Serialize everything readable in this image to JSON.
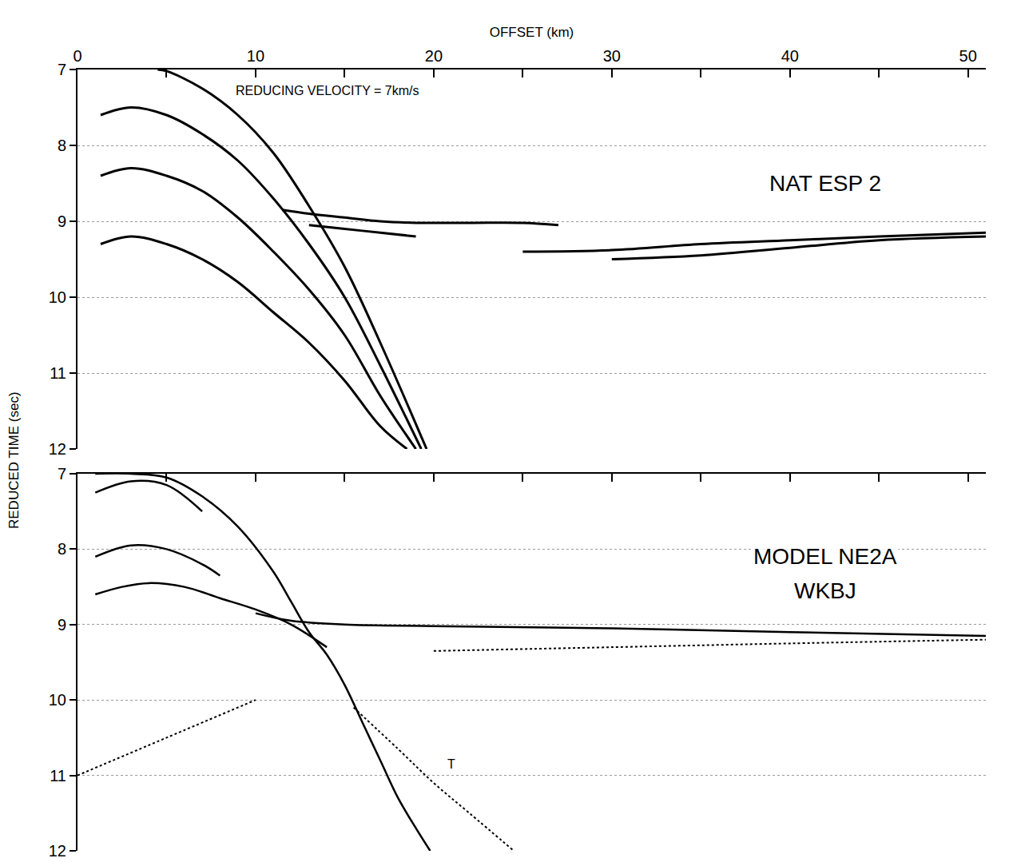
{
  "chart_data": [
    {
      "type": "line",
      "xlabel": "OFFSET (km)",
      "ylabel": "REDUCED TIME (sec)",
      "xlim": [
        0,
        51
      ],
      "xticks": [
        0,
        10,
        20,
        30,
        40,
        50
      ],
      "ylim": [
        12,
        7
      ],
      "yticks": [
        7,
        8,
        9,
        10,
        11,
        12
      ],
      "grid": true,
      "annotations": [
        {
          "text": "REDUCING VELOCITY = 7km/s",
          "x": 8.8,
          "y": 7.28
        },
        {
          "text": "NAT ESP 2",
          "x": 42,
          "y": 8.5
        }
      ],
      "series": [
        {
          "color": "#000000",
          "line_style": "solid",
          "x": [
            4.5,
            5,
            7,
            9,
            11,
            13,
            15,
            17,
            19.6
          ],
          "values": [
            7.0,
            7.02,
            7.25,
            7.6,
            8.1,
            8.8,
            9.6,
            10.6,
            12.0
          ]
        },
        {
          "color": "#000000",
          "line_style": "solid",
          "x": [
            1.3,
            3,
            5,
            7,
            9,
            11,
            13,
            15,
            17,
            19.3
          ],
          "values": [
            7.6,
            7.5,
            7.6,
            7.85,
            8.2,
            8.7,
            9.3,
            10.0,
            10.9,
            12.0
          ]
        },
        {
          "color": "#000000",
          "line_style": "solid",
          "x": [
            1.3,
            3,
            5,
            7,
            9,
            11,
            13,
            15,
            17,
            19.0
          ],
          "values": [
            8.4,
            8.3,
            8.4,
            8.6,
            8.95,
            9.4,
            9.9,
            10.5,
            11.3,
            12.0
          ]
        },
        {
          "color": "#000000",
          "line_style": "solid",
          "x": [
            1.3,
            3,
            5,
            7,
            9,
            11,
            13,
            15,
            17,
            18.5
          ],
          "values": [
            9.3,
            9.2,
            9.3,
            9.5,
            9.8,
            10.2,
            10.6,
            11.1,
            11.7,
            12.0
          ]
        },
        {
          "color": "#000000",
          "line_style": "solid",
          "x": [
            11.5,
            13,
            15,
            17,
            19,
            22,
            25,
            27
          ],
          "values": [
            8.85,
            8.9,
            8.95,
            9.0,
            9.02,
            9.02,
            9.02,
            9.05
          ]
        },
        {
          "color": "#000000",
          "line_style": "solid",
          "x": [
            13,
            15,
            17,
            19
          ],
          "values": [
            9.05,
            9.1,
            9.15,
            9.2
          ]
        },
        {
          "color": "#000000",
          "line_style": "solid",
          "x": [
            25,
            30,
            35,
            40,
            45,
            51
          ],
          "values": [
            9.4,
            9.38,
            9.3,
            9.25,
            9.2,
            9.15
          ]
        },
        {
          "color": "#000000",
          "line_style": "solid",
          "x": [
            30,
            35,
            40,
            45,
            51
          ],
          "values": [
            9.5,
            9.45,
            9.35,
            9.25,
            9.2
          ]
        }
      ]
    },
    {
      "type": "line",
      "xlim": [
        0,
        51
      ],
      "xticks": [
        0,
        10,
        20,
        30,
        40,
        50
      ],
      "ylim": [
        12,
        7
      ],
      "yticks": [
        7,
        8,
        9,
        10,
        11,
        12
      ],
      "grid": true,
      "tick_labels": "y",
      "annotations": [
        {
          "text": "MODEL NE2A",
          "x": 42,
          "y": 8.1
        },
        {
          "text": "WKBJ",
          "x": 42,
          "y": 8.55
        },
        {
          "text": "T",
          "x": 20.7,
          "y": 10.85
        }
      ],
      "series": [
        {
          "color": "#000000",
          "line_style": "solid",
          "x": [
            1,
            3,
            5,
            7,
            9,
            11,
            12,
            13,
            14,
            15,
            16,
            17,
            18,
            19,
            19.8
          ],
          "values": [
            7.0,
            7.0,
            7.05,
            7.3,
            7.7,
            8.3,
            8.7,
            9.1,
            9.4,
            9.8,
            10.3,
            10.8,
            11.3,
            11.7,
            12.0
          ]
        },
        {
          "color": "#000000",
          "line_style": "solid",
          "x": [
            1,
            3,
            5,
            7
          ],
          "values": [
            7.25,
            7.1,
            7.15,
            7.5
          ]
        },
        {
          "color": "#000000",
          "line_style": "solid",
          "x": [
            1,
            3,
            5,
            7,
            8
          ],
          "values": [
            8.1,
            7.95,
            8.0,
            8.2,
            8.35
          ]
        },
        {
          "color": "#000000",
          "line_style": "solid",
          "x": [
            1,
            2.5,
            4,
            6,
            8,
            10,
            12,
            14
          ],
          "values": [
            8.6,
            8.5,
            8.45,
            8.5,
            8.65,
            8.8,
            9.0,
            9.3
          ]
        },
        {
          "color": "#000000",
          "line_style": "solid",
          "x": [
            10,
            12,
            15,
            20,
            30,
            40,
            51
          ],
          "values": [
            8.85,
            8.95,
            9.0,
            9.02,
            9.05,
            9.1,
            9.15
          ]
        },
        {
          "color": "#000000",
          "line_style": "dotted",
          "x": [
            20,
            30,
            40,
            51
          ],
          "values": [
            9.35,
            9.3,
            9.25,
            9.2
          ]
        },
        {
          "color": "#000000",
          "line_style": "dotted",
          "x": [
            0,
            5,
            10
          ],
          "values": [
            11.0,
            10.5,
            10.0
          ]
        },
        {
          "color": "#000000",
          "line_style": "dotted",
          "x": [
            15.5,
            18,
            20,
            22,
            24.5
          ],
          "values": [
            10.1,
            10.65,
            11.1,
            11.5,
            12.0
          ]
        }
      ]
    }
  ]
}
